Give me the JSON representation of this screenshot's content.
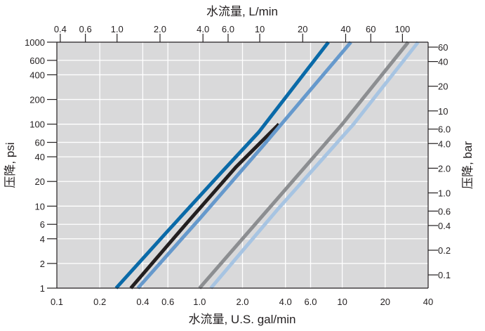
{
  "chart_data": {
    "type": "line",
    "x_scale": "log",
    "y_scale": "log",
    "grid": true,
    "background": "#d9d9da",
    "xlabel_bottom": "水流量, U.S. gal/min",
    "xlabel_top": "水流量, L/min",
    "ylabel_left": "压降, psi",
    "ylabel_right": "压降, bar",
    "xlim": [
      0.1,
      40
    ],
    "ylim": [
      1,
      1000
    ],
    "x_ticks_bottom": [
      {
        "value": 0.1,
        "label": "0.1"
      },
      {
        "value": 0.2,
        "label": "0.2"
      },
      {
        "value": 0.4,
        "label": "0.4"
      },
      {
        "value": 0.6,
        "label": "0.6"
      },
      {
        "value": 1.0,
        "label": "1.0"
      },
      {
        "value": 2.0,
        "label": "2.0"
      },
      {
        "value": 4.0,
        "label": "4.0"
      },
      {
        "value": 6.0,
        "label": "6.0"
      },
      {
        "value": 10,
        "label": "10"
      },
      {
        "value": 20,
        "label": "20"
      },
      {
        "value": 40,
        "label": "40"
      }
    ],
    "x_ticks_top": [
      {
        "value": 0.4,
        "label": "0.4"
      },
      {
        "value": 0.6,
        "label": "0.6"
      },
      {
        "value": 1.0,
        "label": "1.0"
      },
      {
        "value": 2.0,
        "label": "2.0"
      },
      {
        "value": 4.0,
        "label": "4.0"
      },
      {
        "value": 6.0,
        "label": "6.0"
      },
      {
        "value": 10,
        "label": "10"
      },
      {
        "value": 20,
        "label": "20"
      },
      {
        "value": 40,
        "label": "40"
      },
      {
        "value": 60,
        "label": "60"
      },
      {
        "value": 100,
        "label": "100"
      }
    ],
    "y_ticks_left": [
      {
        "value": 1,
        "label": "1"
      },
      {
        "value": 2,
        "label": "2"
      },
      {
        "value": 4,
        "label": "4"
      },
      {
        "value": 6,
        "label": "6"
      },
      {
        "value": 10,
        "label": "10"
      },
      {
        "value": 20,
        "label": "20"
      },
      {
        "value": 40,
        "label": "40"
      },
      {
        "value": 60,
        "label": "60"
      },
      {
        "value": 100,
        "label": "100"
      },
      {
        "value": 200,
        "label": "200"
      },
      {
        "value": 400,
        "label": "400"
      },
      {
        "value": 600,
        "label": "600"
      },
      {
        "value": 1000,
        "label": "1000"
      }
    ],
    "y_ticks_right": [
      {
        "value": 0.1,
        "label": "0.1"
      },
      {
        "value": 0.2,
        "label": "0.2"
      },
      {
        "value": 0.4,
        "label": "0.4"
      },
      {
        "value": 0.6,
        "label": "0.6"
      },
      {
        "value": 1.0,
        "label": "1.0"
      },
      {
        "value": 2.0,
        "label": "2.0"
      },
      {
        "value": 4.0,
        "label": "4.0"
      },
      {
        "value": 6.0,
        "label": "6.0"
      },
      {
        "value": 10,
        "label": "10"
      },
      {
        "value": 20,
        "label": "20"
      },
      {
        "value": 40,
        "label": "40"
      },
      {
        "value": 60,
        "label": "60"
      }
    ],
    "series": [
      {
        "color": "#0a6aa8",
        "x": [
          0.26,
          0.6,
          1.4,
          2.6,
          8.0
        ],
        "y": [
          1,
          5,
          25,
          80,
          1000
        ]
      },
      {
        "color": "#231f20",
        "x": [
          0.33,
          0.8,
          1.8,
          3.6
        ],
        "y": [
          1,
          6,
          30,
          100
        ]
      },
      {
        "color": "#6699cc",
        "x": [
          0.37,
          1.0,
          2.8,
          11.5
        ],
        "y": [
          1,
          7,
          55,
          1000
        ]
      },
      {
        "color": "#8c8e91",
        "x": [
          1.0,
          3.0,
          10.0,
          29.0
        ],
        "y": [
          1,
          9,
          100,
          1000
        ]
      },
      {
        "color": "#a7c4e2",
        "x": [
          1.2,
          3.5,
          12.0,
          34.0
        ],
        "y": [
          1,
          9,
          100,
          1000
        ]
      }
    ]
  }
}
